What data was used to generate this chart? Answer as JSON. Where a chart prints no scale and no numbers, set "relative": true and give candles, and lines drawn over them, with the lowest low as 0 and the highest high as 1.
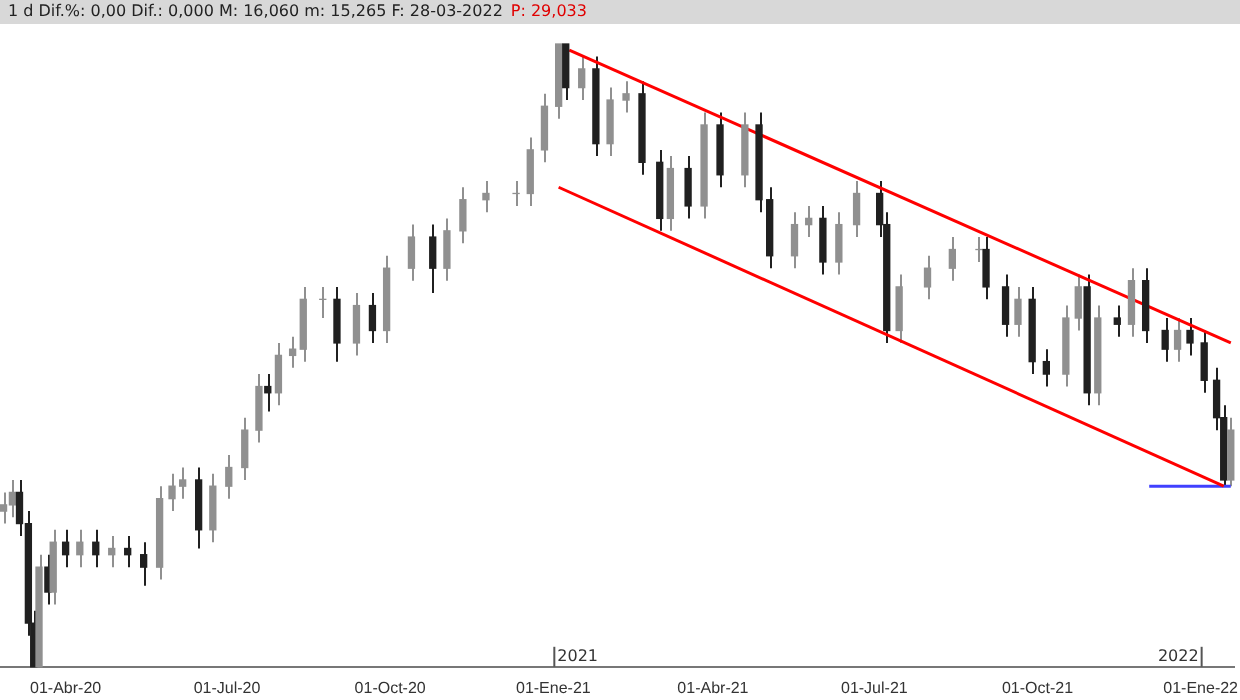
{
  "chart_data": {
    "type": "candlestick",
    "title": "1 d Dif.%: 0,00 Dif.: 0,000 M: 16,060 m: 15,265 F: 28-03-2022",
    "subtitle": "P: 29,033",
    "relative": true,
    "colors": [
      "#909090",
      "#909090",
      "#202020",
      "#202020",
      "#202020",
      "#909090",
      "#202020",
      "#909090",
      "#202020",
      "#909090",
      "#202020",
      "#909090",
      "#202020",
      "#202020",
      "#909090",
      "#909090",
      "#909090",
      "#202020",
      "#909090",
      "#909090",
      "#909090",
      "#909090",
      "#202020",
      "#909090",
      "#909090",
      "#909090",
      "#909090",
      "#202020",
      "#909090",
      "#202020",
      "#909090",
      "#909090",
      "#202020",
      "#909090",
      "#909090",
      "#909090",
      "#909090",
      "#909090",
      "#909090",
      "#909090",
      "#202020",
      "#909090",
      "#202020",
      "#909090",
      "#909090",
      "#202020",
      "#202020",
      "#909090",
      "#202020",
      "#909090",
      "#202020",
      "#909090",
      "#202020",
      "#202020",
      "#909090",
      "#909090",
      "#202020",
      "#909090",
      "#909090",
      "#202020",
      "#202020",
      "#909090",
      "#909090",
      "#909090",
      "#909090",
      "#202020",
      "#202020",
      "#909090",
      "#202020",
      "#202020",
      "#909090",
      "#909090",
      "#202020",
      "#909090",
      "#202020",
      "#909090",
      "#202020",
      "#202020",
      "#909090",
      "#202020",
      "#202020",
      "#202020",
      "#202020",
      "#909090"
    ],
    "x": [
      "2020-02-26",
      "2020-03-02",
      "2020-03-06",
      "2020-03-11",
      "2020-03-14",
      "2020-03-17",
      "2020-03-22",
      "2020-03-25",
      "2020-04-01",
      "2020-04-09",
      "2020-04-18",
      "2020-04-27",
      "2020-05-06",
      "2020-05-15",
      "2020-05-24",
      "2020-05-31",
      "2020-06-06",
      "2020-06-15",
      "2020-06-23",
      "2020-07-02",
      "2020-07-11",
      "2020-07-19",
      "2020-07-24",
      "2020-07-30",
      "2020-08-07",
      "2020-08-13",
      "2020-08-24",
      "2020-09-01",
      "2020-09-12",
      "2020-09-21",
      "2020-09-29",
      "2020-10-13",
      "2020-10-25",
      "2020-11-02",
      "2020-11-11",
      "2020-11-24",
      "2020-12-11",
      "2020-12-19",
      "2020-12-27",
      "2021-01-04",
      "2021-01-08",
      "2021-01-17",
      "2021-01-25",
      "2021-02-02",
      "2021-02-11",
      "2021-02-20",
      "2021-03-02",
      "2021-03-08",
      "2021-03-18",
      "2021-03-27",
      "2021-04-05",
      "2021-04-19",
      "2021-04-27",
      "2021-05-03",
      "2021-05-17",
      "2021-05-25",
      "2021-06-02",
      "2021-06-11",
      "2021-06-21",
      "2021-07-04",
      "2021-07-08",
      "2021-07-15",
      "2021-07-31",
      "2021-08-14",
      "2021-08-29",
      "2021-09-02",
      "2021-09-13",
      "2021-09-20",
      "2021-09-28",
      "2021-10-06",
      "2021-10-17",
      "2021-10-24",
      "2021-10-29",
      "2021-11-04",
      "2021-11-15",
      "2021-11-23",
      "2021-12-01",
      "2021-12-12",
      "2021-12-19",
      "2021-12-26",
      "2022-01-03",
      "2022-01-10",
      "2022-01-14",
      "2022-01-18"
    ],
    "ohlc": [
      [
        0.25,
        0.28,
        0.23,
        0.26
      ],
      [
        0.26,
        0.3,
        0.24,
        0.28
      ],
      [
        0.28,
        0.3,
        0.21,
        0.23
      ],
      [
        0.23,
        0.25,
        0.05,
        0.07
      ],
      [
        0.07,
        0.09,
        0,
        0
      ],
      [
        0,
        0.18,
        0,
        0.16
      ],
      [
        0.16,
        0.18,
        0.1,
        0.12
      ],
      [
        0.12,
        0.22,
        0.1,
        0.2
      ],
      [
        0.2,
        0.22,
        0.16,
        0.18
      ],
      [
        0.18,
        0.22,
        0.16,
        0.2
      ],
      [
        0.2,
        0.22,
        0.16,
        0.18
      ],
      [
        0.18,
        0.21,
        0.16,
        0.19
      ],
      [
        0.19,
        0.21,
        0.16,
        0.18
      ],
      [
        0.18,
        0.2,
        0.13,
        0.16
      ],
      [
        0.16,
        0.29,
        0.14,
        0.27
      ],
      [
        0.27,
        0.31,
        0.25,
        0.29
      ],
      [
        0.29,
        0.32,
        0.27,
        0.3
      ],
      [
        0.3,
        0.32,
        0.19,
        0.22
      ],
      [
        0.22,
        0.31,
        0.2,
        0.29
      ],
      [
        0.29,
        0.34,
        0.27,
        0.32
      ],
      [
        0.32,
        0.4,
        0.3,
        0.38
      ],
      [
        0.38,
        0.47,
        0.36,
        0.45
      ],
      [
        0.45,
        0.47,
        0.41,
        0.44
      ],
      [
        0.44,
        0.52,
        0.42,
        0.5
      ],
      [
        0.5,
        0.53,
        0.48,
        0.51
      ],
      [
        0.51,
        0.61,
        0.49,
        0.59
      ],
      [
        0.59,
        0.61,
        0.56,
        0.59
      ],
      [
        0.59,
        0.61,
        0.49,
        0.52
      ],
      [
        0.52,
        0.6,
        0.5,
        0.58
      ],
      [
        0.58,
        0.6,
        0.52,
        0.54
      ],
      [
        0.54,
        0.66,
        0.52,
        0.64
      ],
      [
        0.64,
        0.71,
        0.62,
        0.69
      ],
      [
        0.69,
        0.71,
        0.6,
        0.64
      ],
      [
        0.64,
        0.72,
        0.62,
        0.7
      ],
      [
        0.7,
        0.77,
        0.68,
        0.75
      ],
      [
        0.75,
        0.78,
        0.73,
        0.76
      ],
      [
        0.76,
        0.78,
        0.74,
        0.76
      ],
      [
        0.76,
        0.85,
        0.74,
        0.83
      ],
      [
        0.83,
        0.92,
        0.81,
        0.9
      ],
      [
        0.9,
        1,
        0.88,
        1
      ],
      [
        1,
        1,
        0.91,
        0.93
      ],
      [
        0.93,
        0.98,
        0.91,
        0.96
      ],
      [
        0.96,
        0.98,
        0.82,
        0.84
      ],
      [
        0.84,
        0.93,
        0.82,
        0.91
      ],
      [
        0.91,
        0.94,
        0.89,
        0.92
      ],
      [
        0.92,
        0.94,
        0.79,
        0.81
      ],
      [
        0.81,
        0.83,
        0.7,
        0.72
      ],
      [
        0.72,
        0.82,
        0.7,
        0.8
      ],
      [
        0.8,
        0.82,
        0.72,
        0.74
      ],
      [
        0.74,
        0.89,
        0.72,
        0.87
      ],
      [
        0.87,
        0.89,
        0.77,
        0.79
      ],
      [
        0.79,
        0.89,
        0.77,
        0.87
      ],
      [
        0.87,
        0.89,
        0.73,
        0.75
      ],
      [
        0.75,
        0.77,
        0.64,
        0.66
      ],
      [
        0.66,
        0.73,
        0.64,
        0.71
      ],
      [
        0.71,
        0.74,
        0.69,
        0.72
      ],
      [
        0.72,
        0.74,
        0.63,
        0.65
      ],
      [
        0.65,
        0.73,
        0.63,
        0.71
      ],
      [
        0.71,
        0.78,
        0.69,
        0.76
      ],
      [
        0.76,
        0.78,
        0.69,
        0.71
      ],
      [
        0.71,
        0.73,
        0.52,
        0.54
      ],
      [
        0.54,
        0.63,
        0.52,
        0.61
      ],
      [
        0.61,
        0.66,
        0.59,
        0.64
      ],
      [
        0.64,
        0.69,
        0.62,
        0.67
      ],
      [
        0.67,
        0.69,
        0.65,
        0.67
      ],
      [
        0.67,
        0.69,
        0.59,
        0.61
      ],
      [
        0.61,
        0.63,
        0.53,
        0.55
      ],
      [
        0.55,
        0.61,
        0.53,
        0.59
      ],
      [
        0.59,
        0.61,
        0.47,
        0.49
      ],
      [
        0.49,
        0.51,
        0.45,
        0.47
      ],
      [
        0.47,
        0.58,
        0.45,
        0.56
      ],
      [
        0.56,
        0.63,
        0.54,
        0.61
      ],
      [
        0.61,
        0.63,
        0.42,
        0.44
      ],
      [
        0.44,
        0.58,
        0.42,
        0.56
      ],
      [
        0.56,
        0.58,
        0.53,
        0.55
      ],
      [
        0.55,
        0.64,
        0.53,
        0.62
      ],
      [
        0.62,
        0.64,
        0.52,
        0.54
      ],
      [
        0.54,
        0.56,
        0.49,
        0.51
      ],
      [
        0.51,
        0.56,
        0.49,
        0.54
      ],
      [
        0.54,
        0.56,
        0.5,
        0.52
      ],
      [
        0.52,
        0.54,
        0.44,
        0.46
      ],
      [
        0.46,
        0.48,
        0.38,
        0.4
      ],
      [
        0.4,
        0.42,
        0.29,
        0.3
      ],
      [
        0.3,
        0.4,
        0.29,
        0.38
      ]
    ],
    "xlim": [
      "2020-02-24",
      "2022-01-20"
    ],
    "xticks": [
      {
        "value": "2020-04-01",
        "label": "01-Abr-20"
      },
      {
        "value": "2020-07-01",
        "label": "01-Jul-20"
      },
      {
        "value": "2020-10-01",
        "label": "01-Oct-20"
      },
      {
        "value": "2021-01-01",
        "label": "01-Ene-21"
      },
      {
        "value": "2021-04-01",
        "label": "01-Abr-21"
      },
      {
        "value": "2021-07-01",
        "label": "01-Jul-21"
      },
      {
        "value": "2021-10-01",
        "label": "01-Oct-21"
      },
      {
        "value": "2022-01-01",
        "label": "01-Ene-22"
      }
    ],
    "series": [
      {
        "type": "line",
        "color": "#ff0000",
        "x": [
          "2021-01-10",
          "2022-01-18"
        ],
        "values": [
          0.99,
          0.52
        ]
      },
      {
        "type": "line",
        "color": "#ff0000",
        "x": [
          "2021-01-04",
          "2022-01-14"
        ],
        "values": [
          0.77,
          0.29
        ]
      },
      {
        "type": "line",
        "color": "#4040ff",
        "x": [
          "2021-12-03",
          "2022-01-18"
        ],
        "values": [
          0.29,
          0.29
        ]
      }
    ],
    "annotations": [
      "2021",
      "2022"
    ]
  }
}
